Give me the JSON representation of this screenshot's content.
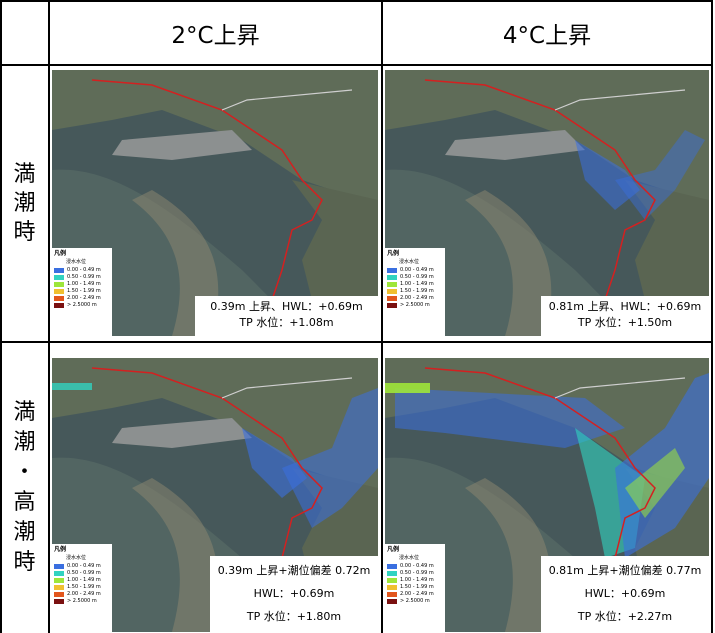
{
  "header": {
    "col1": "2°C上昇",
    "col2": "4°C上昇"
  },
  "rows": {
    "row1": {
      "label_chars": [
        "満",
        "潮",
        "時"
      ]
    },
    "row2": {
      "label_chars": [
        "満",
        "潮",
        "・",
        "高",
        "潮",
        "時"
      ]
    }
  },
  "legend": {
    "title": "凡例",
    "subtitle": "浸水水位",
    "items": [
      {
        "label": "0.00 - 0.49 m",
        "color": "#3a6fe0"
      },
      {
        "label": "0.50 - 0.99 m",
        "color": "#31d3c0"
      },
      {
        "label": "1.00 - 1.49 m",
        "color": "#9ee63a"
      },
      {
        "label": "1.50 - 1.99 m",
        "color": "#f0c030"
      },
      {
        "label": "2.00 - 2.49 m",
        "color": "#e2561d"
      },
      {
        "label": "> 2.5000 m",
        "color": "#7a1010"
      }
    ]
  },
  "panels": {
    "p11": {
      "line1": "0.39m 上昇、HWL：+0.69m",
      "line2": "TP 水位：+1.08m"
    },
    "p12": {
      "line1": "0.81m 上昇、HWL：+0.69m",
      "line2": "TP 水位：+1.50m"
    },
    "p21": {
      "line1": "0.39m 上昇+潮位偏差 0.72m",
      "line2": "HWL：+0.69m",
      "line3": "TP 水位：+1.80m"
    },
    "p22": {
      "line1": "0.81m 上昇+潮位偏差 0.77m",
      "line2": "HWL：+0.69m",
      "line3": "TP 水位：+2.27m"
    }
  },
  "colors": {
    "flood_boundary": "#d42020",
    "sea": "#3f5a61",
    "land": "#5e6a55"
  }
}
